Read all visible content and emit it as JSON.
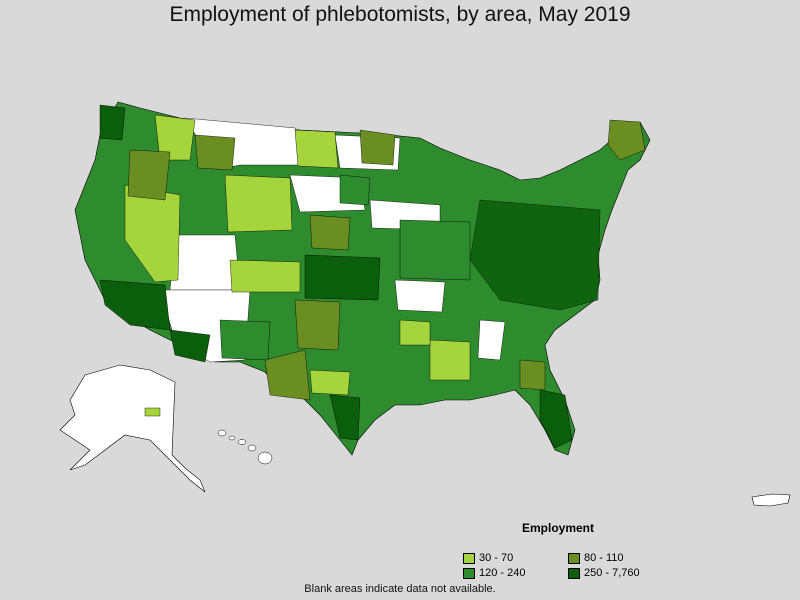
{
  "title": "Employment of phlebotomists, by area, May 2019",
  "legend": {
    "title": "Employment",
    "items": [
      {
        "label": "30 - 70",
        "color": "#a6d43c"
      },
      {
        "label": "80 - 110",
        "color": "#6b8e23"
      },
      {
        "label": "120 - 240",
        "color": "#2e8b2e"
      },
      {
        "label": "250 - 7,760",
        "color": "#0b5e0b"
      }
    ]
  },
  "footnote": "Blank areas indicate data not available.",
  "colors": {
    "background": "#d9d9d9",
    "no_data": "#ffffff",
    "border": "#000000"
  }
}
